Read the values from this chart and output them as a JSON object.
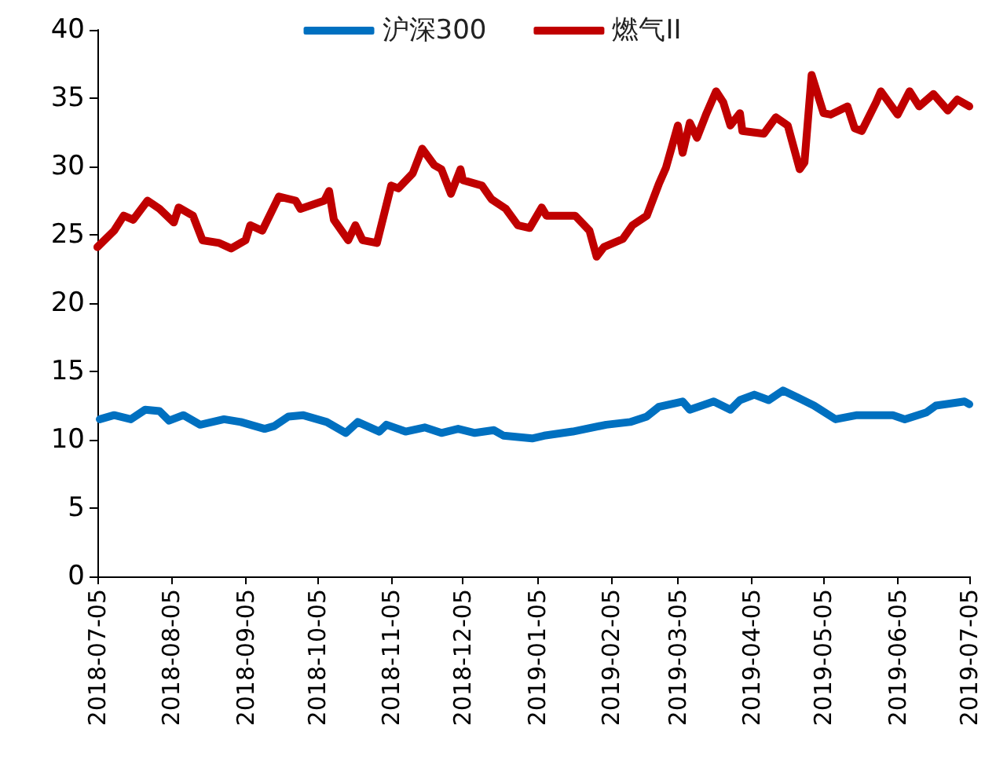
{
  "chart_data": {
    "type": "line",
    "legend": "top",
    "grid": false,
    "xlim": [
      "2018-07-05",
      "2019-07-05"
    ],
    "xticks": [
      "2018-07-05",
      "2018-08-05",
      "2018-09-05",
      "2018-10-05",
      "2018-11-05",
      "2018-12-05",
      "2019-01-05",
      "2019-02-05",
      "2019-03-05",
      "2019-04-05",
      "2019-05-05",
      "2019-06-05",
      "2019-07-05"
    ],
    "ylim": [
      0,
      40
    ],
    "yticks": [
      0,
      5,
      10,
      15,
      20,
      25,
      30,
      35,
      40
    ],
    "series": [
      {
        "name": "沪深300",
        "color": "#0070c0",
        "x": [
          "2018-07-06",
          "2018-07-12",
          "2018-07-19",
          "2018-07-25",
          "2018-07-31",
          "2018-08-04",
          "2018-08-10",
          "2018-08-17",
          "2018-08-27",
          "2018-09-03",
          "2018-09-13",
          "2018-09-17",
          "2018-09-23",
          "2018-09-29",
          "2018-10-09",
          "2018-10-17",
          "2018-10-22",
          "2018-10-31",
          "2018-11-03",
          "2018-11-11",
          "2018-11-19",
          "2018-11-26",
          "2018-12-03",
          "2018-12-10",
          "2018-12-18",
          "2018-12-22",
          "2019-01-03",
          "2019-01-08",
          "2019-01-20",
          "2019-02-03",
          "2019-02-13",
          "2019-02-20",
          "2019-02-25",
          "2019-03-07",
          "2019-03-10",
          "2019-03-20",
          "2019-03-27",
          "2019-03-31",
          "2019-04-06",
          "2019-04-12",
          "2019-04-18",
          "2019-04-24",
          "2019-05-01",
          "2019-05-10",
          "2019-05-19",
          "2019-06-03",
          "2019-06-08",
          "2019-06-17",
          "2019-06-21",
          "2019-07-03",
          "2019-07-05"
        ],
        "values": [
          11.5,
          11.8,
          11.5,
          12.2,
          12.1,
          11.4,
          11.8,
          11.1,
          11.5,
          11.3,
          10.8,
          11.0,
          11.7,
          11.8,
          11.3,
          10.5,
          11.3,
          10.6,
          11.1,
          10.6,
          10.9,
          10.5,
          10.8,
          10.5,
          10.7,
          10.3,
          10.1,
          10.3,
          10.6,
          11.1,
          11.3,
          11.7,
          12.4,
          12.8,
          12.2,
          12.8,
          12.2,
          12.9,
          13.3,
          12.9,
          13.6,
          13.1,
          12.5,
          11.5,
          11.8,
          11.8,
          11.5,
          12.0,
          12.5,
          12.8,
          12.6
        ]
      },
      {
        "name": "燃气II",
        "color": "#c00000",
        "x": [
          "2018-07-05",
          "2018-07-12",
          "2018-07-16",
          "2018-07-20",
          "2018-07-26",
          "2018-07-31",
          "2018-08-06",
          "2018-08-08",
          "2018-08-14",
          "2018-08-18",
          "2018-08-25",
          "2018-08-30",
          "2018-09-05",
          "2018-09-07",
          "2018-09-12",
          "2018-09-19",
          "2018-09-26",
          "2018-09-28",
          "2018-10-08",
          "2018-10-10",
          "2018-10-12",
          "2018-10-18",
          "2018-10-21",
          "2018-10-24",
          "2018-10-30",
          "2018-11-05",
          "2018-11-08",
          "2018-11-14",
          "2018-11-18",
          "2018-11-23",
          "2018-11-26",
          "2018-11-30",
          "2018-12-04",
          "2018-12-05",
          "2018-12-13",
          "2018-12-17",
          "2018-12-23",
          "2018-12-28",
          "2019-01-02",
          "2019-01-07",
          "2019-01-09",
          "2019-01-12",
          "2019-01-21",
          "2019-01-27",
          "2019-01-30",
          "2019-02-02",
          "2019-02-10",
          "2019-02-14",
          "2019-02-20",
          "2019-02-25",
          "2019-02-28",
          "2019-03-05",
          "2019-03-07",
          "2019-03-10",
          "2019-03-13",
          "2019-03-17",
          "2019-03-21",
          "2019-03-24",
          "2019-03-27",
          "2019-03-31",
          "2019-04-01",
          "2019-04-10",
          "2019-04-15",
          "2019-04-20",
          "2019-04-25",
          "2019-04-27",
          "2019-04-30",
          "2019-05-05",
          "2019-05-08",
          "2019-05-15",
          "2019-05-18",
          "2019-05-21",
          "2019-05-27",
          "2019-05-29",
          "2019-06-05",
          "2019-06-10",
          "2019-06-14",
          "2019-06-20",
          "2019-06-26",
          "2019-06-30",
          "2019-07-05"
        ],
        "values": [
          24.1,
          25.3,
          26.4,
          26.1,
          27.5,
          26.9,
          25.9,
          27.0,
          26.4,
          24.6,
          24.4,
          24.0,
          24.6,
          25.7,
          25.3,
          27.8,
          27.5,
          26.9,
          27.5,
          28.2,
          26.1,
          24.6,
          25.7,
          24.6,
          24.4,
          28.6,
          28.4,
          29.5,
          31.3,
          30.1,
          29.8,
          28.0,
          29.8,
          29.0,
          28.6,
          27.6,
          26.9,
          25.7,
          25.5,
          27.0,
          26.4,
          26.4,
          26.4,
          25.3,
          23.4,
          24.1,
          24.7,
          25.7,
          26.4,
          28.7,
          29.9,
          33.0,
          31.0,
          33.2,
          32.1,
          33.9,
          35.5,
          34.7,
          33.0,
          33.9,
          32.6,
          32.4,
          33.6,
          33.0,
          29.8,
          30.3,
          36.7,
          33.9,
          33.8,
          34.4,
          32.8,
          32.6,
          34.7,
          35.5,
          33.8,
          35.5,
          34.4,
          35.3,
          34.1,
          34.9,
          34.4
        ]
      }
    ]
  }
}
